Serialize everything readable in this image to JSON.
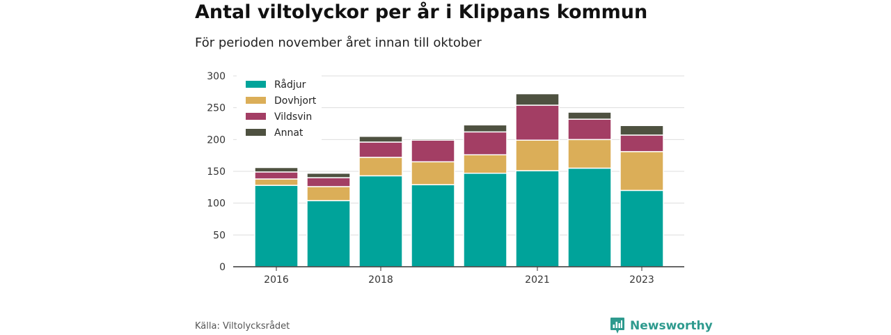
{
  "header": {
    "title": "Antal viltolyckor per år i Klippans kommun",
    "subtitle": "För perioden november året innan till oktober"
  },
  "footer": {
    "source": "Källa: Viltolycksrådet",
    "brand": "Newsworthy"
  },
  "colors": {
    "Rådjur": "#00a39a",
    "Dovhjort": "#dbae58",
    "Vildsvin": "#a33e64",
    "Annat": "#4e5140",
    "grid": "#dddddd",
    "axis": "#333333"
  },
  "chart_data": {
    "type": "bar",
    "stacked": true,
    "categories": [
      "2016",
      "2017",
      "2018",
      "2019",
      "2020",
      "2021",
      "2022",
      "2023"
    ],
    "x_tick_labels": [
      "2016",
      "",
      "2018",
      "",
      "",
      "2021",
      "",
      "2023"
    ],
    "series": [
      {
        "name": "Rådjur",
        "values": [
          128,
          104,
          143,
          129,
          147,
          151,
          155,
          120
        ]
      },
      {
        "name": "Dovhjort",
        "values": [
          10,
          22,
          29,
          36,
          29,
          48,
          45,
          61
        ]
      },
      {
        "name": "Vildsvin",
        "values": [
          11,
          14,
          24,
          34,
          36,
          55,
          32,
          26
        ]
      },
      {
        "name": "Annat",
        "values": [
          7,
          7,
          9,
          2,
          11,
          18,
          11,
          15
        ]
      }
    ],
    "ylim": [
      0,
      300
    ],
    "yticks": [
      0,
      50,
      100,
      150,
      200,
      250,
      300
    ],
    "grid": true,
    "legend_position": "top-left"
  }
}
